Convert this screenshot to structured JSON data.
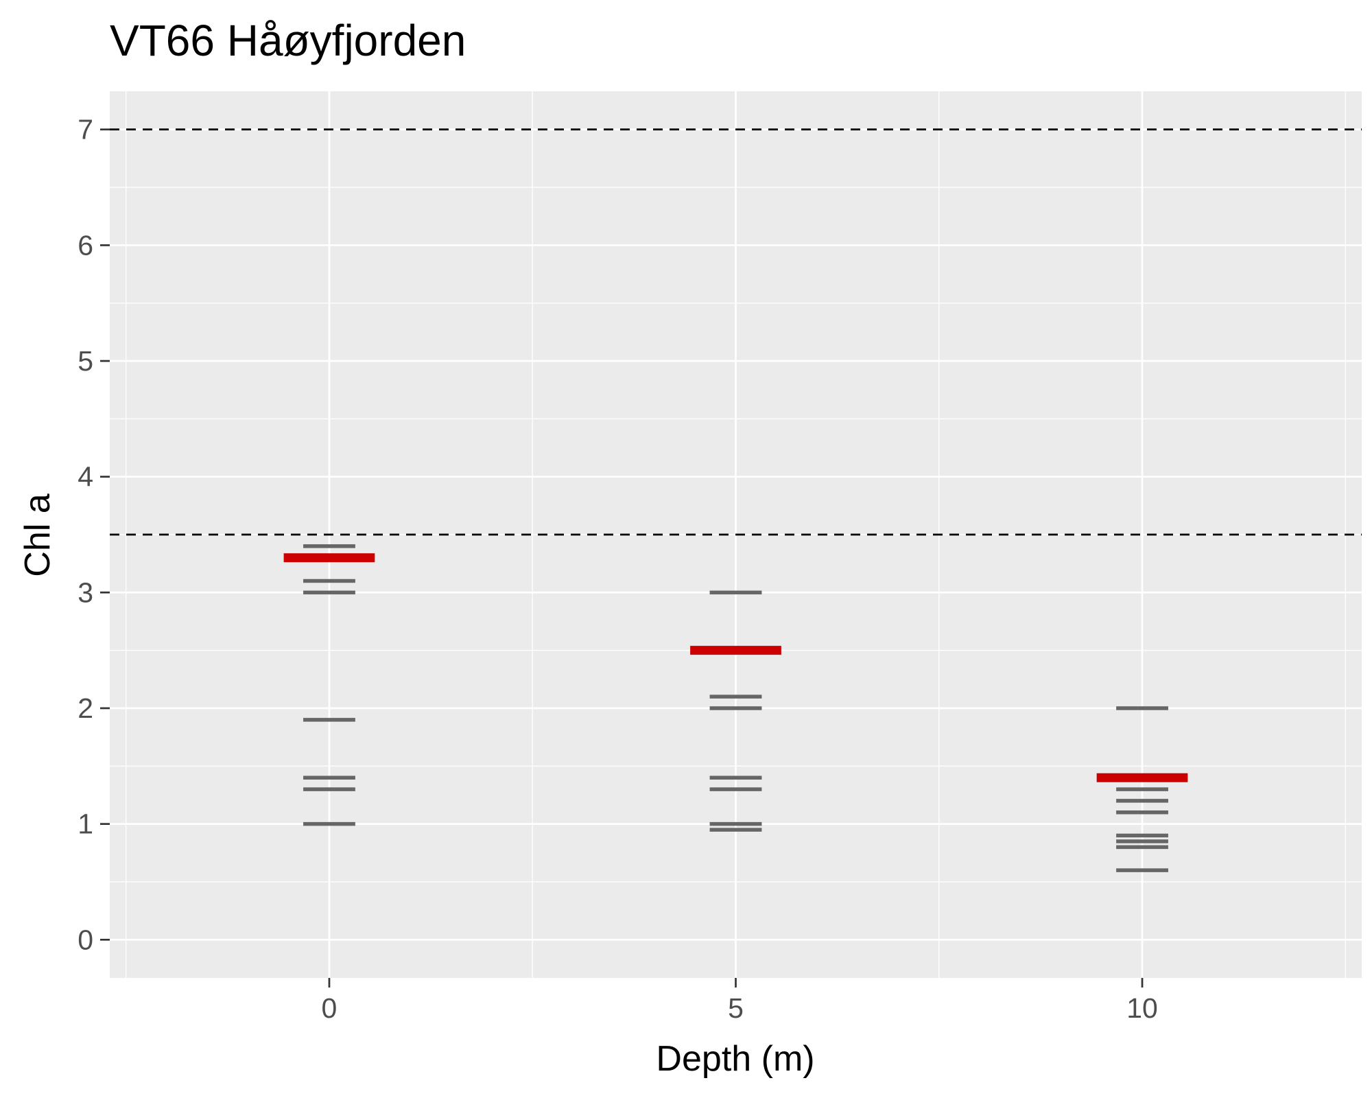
{
  "chart_data": {
    "type": "scatter",
    "title": "VT66 Håøyfjorden",
    "xlabel": "Depth (m)",
    "ylabel": "Chl a",
    "xlim": [
      -2.7,
      12.7
    ],
    "ylim": [
      -0.33,
      7.33
    ],
    "x_ticks": [
      0,
      5,
      10
    ],
    "y_ticks": [
      0,
      1,
      2,
      3,
      4,
      5,
      6,
      7
    ],
    "grid": true,
    "reference_lines": [
      3.5,
      7
    ],
    "series": [
      {
        "marker": "horizontal-dash",
        "color": "#666666",
        "points": [
          {
            "x": 0,
            "y": 3.4
          },
          {
            "x": 0,
            "y": 3.1
          },
          {
            "x": 0,
            "y": 3.0
          },
          {
            "x": 0,
            "y": 1.9
          },
          {
            "x": 0,
            "y": 1.4
          },
          {
            "x": 0,
            "y": 1.3
          },
          {
            "x": 0,
            "y": 1.0
          },
          {
            "x": 5,
            "y": 3.0
          },
          {
            "x": 5,
            "y": 2.1
          },
          {
            "x": 5,
            "y": 2.0
          },
          {
            "x": 5,
            "y": 1.4
          },
          {
            "x": 5,
            "y": 1.3
          },
          {
            "x": 5,
            "y": 1.0
          },
          {
            "x": 5,
            "y": 0.95
          },
          {
            "x": 10,
            "y": 2.0
          },
          {
            "x": 10,
            "y": 1.3
          },
          {
            "x": 10,
            "y": 1.2
          },
          {
            "x": 10,
            "y": 1.1
          },
          {
            "x": 10,
            "y": 0.9
          },
          {
            "x": 10,
            "y": 0.85
          },
          {
            "x": 10,
            "y": 0.8
          },
          {
            "x": 10,
            "y": 0.6
          }
        ]
      },
      {
        "marker": "horizontal-bar",
        "color": "#cc0000",
        "points": [
          {
            "x": 0,
            "y": 3.3
          },
          {
            "x": 5,
            "y": 2.5
          },
          {
            "x": 10,
            "y": 1.4
          }
        ]
      }
    ],
    "colors": {
      "panel": "#ebebeb",
      "grid": "#ffffff",
      "reference": "#000000"
    }
  }
}
